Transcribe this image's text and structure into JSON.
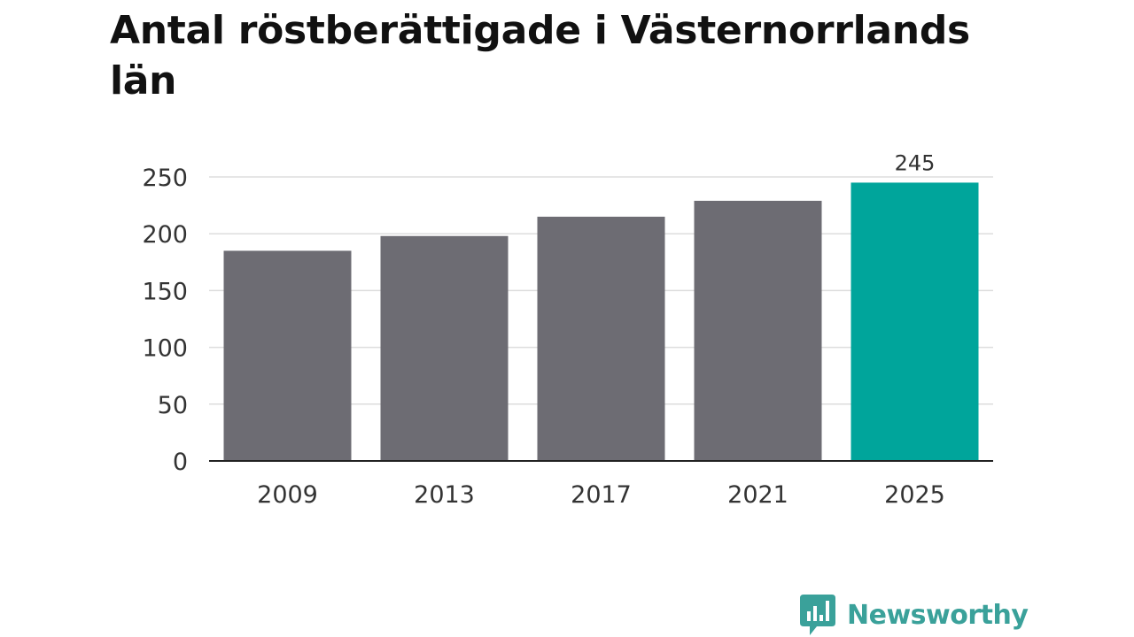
{
  "chart_data": {
    "type": "bar",
    "title": "Antal röstberättigade i Västernorrlands län",
    "categories": [
      "2009",
      "2013",
      "2017",
      "2021",
      "2025"
    ],
    "values": [
      185,
      198,
      215,
      229,
      245
    ],
    "highlight_index": 4,
    "data_labels": [
      "",
      "",
      "",
      "",
      "245"
    ],
    "ylim": [
      0,
      250
    ],
    "yticks": [
      0,
      50,
      100,
      150,
      200,
      250
    ],
    "grid": true,
    "colors": {
      "bar": "#6d6c73",
      "highlight": "#00a59b",
      "grid": "#dddddd",
      "axis": "#222222"
    }
  },
  "brand": {
    "name": "Newsworthy",
    "icon": "newsworthy-logo-icon",
    "color": "#3aa19a"
  }
}
